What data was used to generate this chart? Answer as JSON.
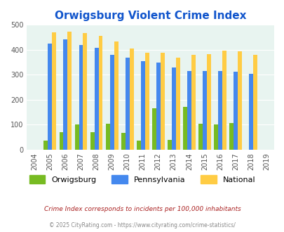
{
  "title": "Orwigsburg Violent Crime Index",
  "years": [
    2004,
    2005,
    2006,
    2007,
    2008,
    2009,
    2010,
    2011,
    2012,
    2013,
    2014,
    2015,
    2016,
    2017,
    2018,
    2019
  ],
  "bar_years": [
    2005,
    2006,
    2007,
    2008,
    2009,
    2010,
    2011,
    2012,
    2013,
    2014,
    2015,
    2016,
    2017,
    2018
  ],
  "orwigsburg": [
    35,
    70,
    100,
    70,
    103,
    68,
    35,
    165,
    38,
    170,
    103,
    100,
    107,
    0
  ],
  "pennsylvania": [
    425,
    442,
    418,
    408,
    380,
    368,
    354,
    349,
    328,
    315,
    315,
    315,
    311,
    305
  ],
  "national": [
    470,
    474,
    468,
    455,
    432,
    405,
    388,
    388,
    368,
    379,
    384,
    397,
    394,
    380
  ],
  "orwigsburg_color": "#77bb22",
  "pennsylvania_color": "#4488ee",
  "national_color": "#ffcc44",
  "background_color": "#e8f4f0",
  "ylim": [
    0,
    500
  ],
  "yticks": [
    0,
    100,
    200,
    300,
    400,
    500
  ],
  "subtitle": "Crime Index corresponds to incidents per 100,000 inhabitants",
  "footer": "© 2025 CityRating.com - https://www.cityrating.com/crime-statistics/",
  "title_color": "#1155cc",
  "subtitle_color": "#aa2222",
  "footer_color": "#888888",
  "legend_labels": [
    "Orwigsburg",
    "Pennsylvania",
    "National"
  ],
  "bar_width": 0.27
}
